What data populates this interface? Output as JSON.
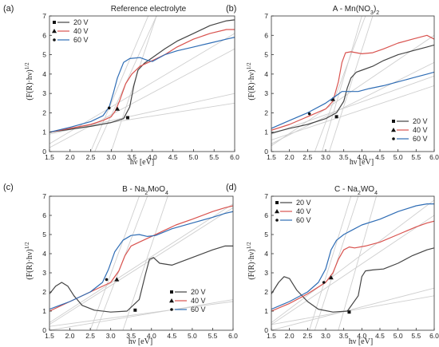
{
  "figure": {
    "panels": [
      {
        "letter": "(a)"
      },
      {
        "letter": "(b)"
      },
      {
        "letter": "(c)"
      },
      {
        "letter": "(d)"
      }
    ]
  },
  "chart_data": [
    {
      "type": "line",
      "title": "Reference electrolyte",
      "xlabel": "hν [eV]",
      "ylabel": "(F(R)·hν)^1/2",
      "xlim": [
        1.5,
        6.0
      ],
      "ylim": [
        0,
        7
      ],
      "xticks": [
        1.5,
        2.0,
        2.5,
        3.0,
        3.5,
        4.0,
        4.5,
        5.0,
        5.5,
        6.0
      ],
      "yticks": [
        0,
        1,
        2,
        3,
        4,
        5,
        6,
        7
      ],
      "grid": false,
      "legend": "top-left",
      "series": [
        {
          "name": "20 V",
          "color": "#444444",
          "marker": "square",
          "x": [
            1.5,
            2.0,
            2.5,
            3.0,
            3.3,
            3.45,
            3.55,
            3.65,
            3.8,
            4.0,
            4.3,
            4.6,
            5.0,
            5.4,
            5.8,
            6.0
          ],
          "y": [
            1.0,
            1.15,
            1.3,
            1.5,
            1.7,
            2.3,
            3.4,
            4.2,
            4.55,
            4.85,
            5.3,
            5.7,
            6.1,
            6.5,
            6.75,
            6.8
          ],
          "tangent_point": [
            3.4,
            1.75
          ]
        },
        {
          "name": "40 V",
          "color": "#d9534f",
          "marker": "triangle",
          "x": [
            1.5,
            2.0,
            2.5,
            2.8,
            3.0,
            3.1,
            3.2,
            3.35,
            3.5,
            3.7,
            4.0,
            4.3,
            4.6,
            5.0,
            5.4,
            5.8,
            6.0
          ],
          "y": [
            1.0,
            1.2,
            1.4,
            1.6,
            1.8,
            2.1,
            2.6,
            3.5,
            4.0,
            4.4,
            4.7,
            5.0,
            5.4,
            5.8,
            6.1,
            6.3,
            6.3
          ],
          "tangent_point": [
            3.15,
            2.2
          ]
        },
        {
          "name": "60 V",
          "color": "#2f6db5",
          "marker": "circle",
          "x": [
            1.5,
            2.0,
            2.5,
            2.8,
            2.95,
            3.05,
            3.15,
            3.3,
            3.45,
            3.7,
            3.9,
            4.0,
            4.3,
            4.6,
            5.0,
            5.4,
            5.8,
            6.0
          ],
          "y": [
            1.0,
            1.25,
            1.55,
            1.85,
            2.3,
            3.0,
            3.8,
            4.6,
            4.8,
            4.85,
            4.7,
            4.65,
            5.0,
            5.2,
            5.4,
            5.6,
            5.8,
            5.9
          ],
          "tangent_point": [
            2.95,
            2.25
          ]
        }
      ],
      "tangent_lines": [
        [
          [
            1.5,
            0.9
          ],
          [
            6.0,
            3.0
          ]
        ],
        [
          [
            1.5,
            1.0
          ],
          [
            6.0,
            2.5
          ]
        ],
        [
          [
            2.6,
            0
          ],
          [
            4.1,
            7
          ]
        ],
        [
          [
            2.5,
            0
          ],
          [
            3.9,
            7
          ]
        ],
        [
          [
            3.0,
            0
          ],
          [
            4.1,
            7
          ]
        ],
        [
          [
            1.5,
            0.2
          ],
          [
            6.0,
            5.3
          ]
        ],
        [
          [
            1.5,
            0.4
          ],
          [
            6.0,
            6.1
          ]
        ]
      ]
    },
    {
      "type": "line",
      "title": "A - Mn(NO3)2",
      "xlabel": "hν [eV]",
      "ylabel": "(F(R)·hν)^1/2",
      "xlim": [
        1.5,
        6.0
      ],
      "ylim": [
        0,
        7
      ],
      "xticks": [
        1.5,
        2.0,
        2.5,
        3.0,
        3.5,
        4.0,
        4.5,
        5.0,
        5.5,
        6.0
      ],
      "yticks": [
        0,
        1,
        2,
        3,
        4,
        5,
        6,
        7
      ],
      "grid": false,
      "legend": "bottom-right",
      "series": [
        {
          "name": "20 V",
          "color": "#444444",
          "marker": "square",
          "x": [
            1.5,
            2.0,
            2.5,
            3.0,
            3.3,
            3.5,
            3.6,
            3.7,
            3.85,
            4.0,
            4.3,
            4.6,
            5.0,
            5.4,
            5.8,
            6.0
          ],
          "y": [
            0.95,
            1.2,
            1.4,
            1.7,
            2.0,
            2.6,
            3.3,
            3.8,
            4.1,
            4.2,
            4.4,
            4.7,
            5.0,
            5.2,
            5.4,
            5.5
          ],
          "tangent_point": [
            3.3,
            1.8
          ]
        },
        {
          "name": "40 V",
          "color": "#d9534f",
          "marker": "triangle",
          "x": [
            1.5,
            2.0,
            2.5,
            3.0,
            3.2,
            3.35,
            3.45,
            3.55,
            3.7,
            4.0,
            4.3,
            4.6,
            5.0,
            5.4,
            5.8,
            6.0
          ],
          "y": [
            1.1,
            1.4,
            1.8,
            2.2,
            2.6,
            3.6,
            4.6,
            5.1,
            5.15,
            5.05,
            5.1,
            5.3,
            5.6,
            5.8,
            6.0,
            5.8
          ],
          "tangent_point": [
            3.2,
            2.7
          ]
        },
        {
          "name": "60 V",
          "color": "#2f6db5",
          "marker": "circle",
          "x": [
            1.5,
            2.0,
            2.5,
            3.0,
            3.3,
            3.45,
            3.55,
            3.7,
            3.9,
            4.2,
            4.6,
            5.0,
            5.4,
            5.8,
            6.0
          ],
          "y": [
            1.2,
            1.6,
            2.0,
            2.5,
            2.9,
            3.1,
            3.1,
            3.1,
            3.1,
            3.25,
            3.4,
            3.6,
            3.8,
            4.0,
            4.1
          ],
          "tangent_point": [
            2.55,
            1.95
          ]
        }
      ],
      "tangent_lines": [
        [
          [
            1.5,
            0.9
          ],
          [
            6.0,
            3.9
          ]
        ],
        [
          [
            1.5,
            0.6
          ],
          [
            6.0,
            3.4
          ]
        ],
        [
          [
            2.9,
            0
          ],
          [
            4.0,
            7
          ]
        ],
        [
          [
            3.1,
            0
          ],
          [
            4.3,
            7
          ]
        ],
        [
          [
            2.7,
            0
          ],
          [
            4.1,
            7
          ]
        ],
        [
          [
            1.5,
            0.3
          ],
          [
            6.0,
            6.0
          ]
        ],
        [
          [
            1.5,
            0.4
          ],
          [
            6.0,
            4.6
          ]
        ]
      ]
    },
    {
      "type": "line",
      "title": "B - Na2MoO4",
      "xlabel": "hν [eV]",
      "ylabel": "(F(R)·hν)^1/2",
      "xlim": [
        1.5,
        6.0
      ],
      "ylim": [
        0,
        7
      ],
      "xticks": [
        1.5,
        2.0,
        2.5,
        3.0,
        3.5,
        4.0,
        4.5,
        5.0,
        5.5,
        6.0
      ],
      "yticks": [
        0,
        1,
        2,
        3,
        4,
        5,
        6,
        7
      ],
      "grid": false,
      "legend": "bottom-right",
      "series": [
        {
          "name": "20 V",
          "color": "#444444",
          "marker": "square",
          "x": [
            1.5,
            1.65,
            1.8,
            1.95,
            2.1,
            2.3,
            2.6,
            3.0,
            3.4,
            3.7,
            3.85,
            3.95,
            4.05,
            4.2,
            4.5,
            5.0,
            5.5,
            5.8,
            6.0
          ],
          "y": [
            1.9,
            2.3,
            2.5,
            2.3,
            1.8,
            1.3,
            1.05,
            0.95,
            1.0,
            1.6,
            2.9,
            3.7,
            3.8,
            3.5,
            3.4,
            3.8,
            4.2,
            4.4,
            4.4
          ],
          "tangent_point": [
            3.6,
            1.05
          ]
        },
        {
          "name": "40 V",
          "color": "#d9534f",
          "marker": "triangle",
          "x": [
            1.5,
            2.0,
            2.5,
            3.0,
            3.2,
            3.35,
            3.5,
            3.7,
            4.0,
            4.3,
            4.6,
            5.0,
            5.5,
            5.8,
            6.0
          ],
          "y": [
            1.0,
            1.5,
            2.0,
            2.5,
            3.1,
            3.9,
            4.4,
            4.6,
            4.9,
            5.2,
            5.5,
            5.8,
            6.2,
            6.4,
            6.5
          ],
          "tangent_point": [
            3.15,
            2.65
          ]
        },
        {
          "name": "60 V",
          "color": "#2f6db5",
          "marker": "circle",
          "x": [
            1.5,
            2.0,
            2.5,
            2.8,
            2.95,
            3.1,
            3.3,
            3.5,
            3.7,
            3.9,
            4.1,
            4.5,
            5.0,
            5.5,
            5.8,
            6.0
          ],
          "y": [
            1.1,
            1.5,
            2.0,
            2.5,
            3.2,
            4.1,
            4.7,
            4.95,
            5.0,
            4.9,
            4.95,
            5.3,
            5.6,
            5.9,
            6.1,
            6.2
          ],
          "tangent_point": [
            2.9,
            2.65
          ]
        }
      ],
      "tangent_lines": [
        [
          [
            1.5,
            0.0
          ],
          [
            6.0,
            1.6
          ]
        ],
        [
          [
            1.5,
            0.2
          ],
          [
            6.0,
            1.5
          ]
        ],
        [
          [
            2.65,
            0
          ],
          [
            3.9,
            7
          ]
        ],
        [
          [
            2.5,
            0
          ],
          [
            3.7,
            7
          ]
        ],
        [
          [
            3.3,
            0
          ],
          [
            4.4,
            7
          ]
        ],
        [
          [
            1.5,
            0.3
          ],
          [
            6.0,
            6.4
          ]
        ],
        [
          [
            1.5,
            0.4
          ],
          [
            6.0,
            6.6
          ]
        ]
      ]
    },
    {
      "type": "line",
      "title": "C - Na2WO4",
      "xlabel": "hν [eV]",
      "ylabel": "(F(R)·hν)^1/2",
      "xlim": [
        1.5,
        6.0
      ],
      "ylim": [
        0,
        7
      ],
      "xticks": [
        1.5,
        2.0,
        2.5,
        3.0,
        3.5,
        4.0,
        4.5,
        5.0,
        5.5,
        6.0
      ],
      "yticks": [
        0,
        1,
        2,
        3,
        4,
        5,
        6,
        7
      ],
      "grid": false,
      "legend": "top-left",
      "series": [
        {
          "name": "20 V",
          "color": "#444444",
          "marker": "square",
          "x": [
            1.5,
            1.7,
            1.85,
            2.0,
            2.2,
            2.5,
            2.8,
            3.2,
            3.6,
            3.9,
            4.0,
            4.1,
            4.3,
            4.6,
            5.0,
            5.4,
            5.8,
            6.0
          ],
          "y": [
            1.9,
            2.5,
            2.8,
            2.7,
            2.1,
            1.5,
            1.1,
            0.95,
            1.0,
            1.8,
            2.8,
            3.1,
            3.15,
            3.2,
            3.5,
            3.9,
            4.2,
            4.3
          ],
          "tangent_point": [
            3.65,
            0.95
          ]
        },
        {
          "name": "40 V",
          "color": "#d9534f",
          "marker": "triangle",
          "x": [
            1.5,
            2.0,
            2.5,
            3.0,
            3.2,
            3.35,
            3.5,
            3.65,
            3.8,
            4.1,
            4.5,
            5.0,
            5.5,
            5.8,
            6.0
          ],
          "y": [
            1.0,
            1.4,
            1.9,
            2.5,
            3.0,
            3.7,
            4.2,
            4.35,
            4.3,
            4.4,
            4.6,
            5.0,
            5.4,
            5.6,
            5.7
          ],
          "tangent_point": [
            3.15,
            2.75
          ]
        },
        {
          "name": "60 V",
          "color": "#2f6db5",
          "marker": "circle",
          "x": [
            1.5,
            2.0,
            2.5,
            2.8,
            3.0,
            3.15,
            3.3,
            3.5,
            3.7,
            4.0,
            4.5,
            5.0,
            5.5,
            5.8,
            6.0
          ],
          "y": [
            1.1,
            1.5,
            2.0,
            2.5,
            3.2,
            4.2,
            4.7,
            5.0,
            5.2,
            5.5,
            5.8,
            6.2,
            6.5,
            6.6,
            6.6
          ],
          "tangent_point": [
            2.95,
            2.5
          ]
        }
      ],
      "tangent_lines": [
        [
          [
            1.5,
            0.0
          ],
          [
            6.0,
            2.2
          ]
        ],
        [
          [
            1.5,
            0.3
          ],
          [
            6.0,
            1.8
          ]
        ],
        [
          [
            2.7,
            0
          ],
          [
            3.9,
            7
          ]
        ],
        [
          [
            2.55,
            0
          ],
          [
            3.7,
            7
          ]
        ],
        [
          [
            3.35,
            0
          ],
          [
            4.4,
            7
          ]
        ],
        [
          [
            1.5,
            0.3
          ],
          [
            6.0,
            6.0
          ]
        ],
        [
          [
            1.5,
            0.4
          ],
          [
            6.0,
            6.8
          ]
        ]
      ]
    }
  ]
}
